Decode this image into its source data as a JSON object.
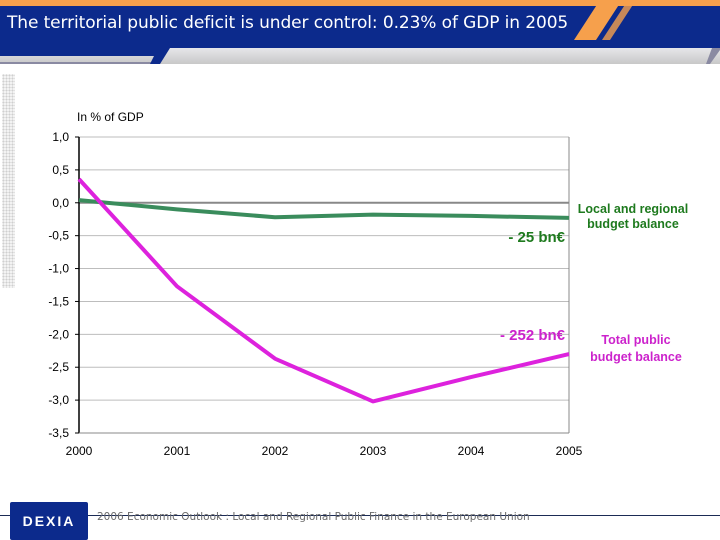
{
  "header": {
    "title": "The territorial public deficit is under control: 0.23% of GDP in 2005"
  },
  "footer": {
    "logo_text": "DEXIA",
    "caption": "2006 Economic Outlook : Local and Regional Public Finance in the European Union"
  },
  "colors": {
    "header_blue": "#0c2a8c",
    "header_orange": "#f6a04c",
    "local_series": "#3a8c5c",
    "total_series": "#dd22dd"
  },
  "chart_data": {
    "type": "line",
    "title": "",
    "ylabel": "In % of GDP",
    "xlabel": "",
    "x": [
      2000,
      2001,
      2002,
      2003,
      2004,
      2005
    ],
    "x_tick_labels": [
      "2000",
      "2001",
      "2002",
      "2003",
      "2004",
      "2005"
    ],
    "ylim": [
      -3.5,
      1.0
    ],
    "y_ticks": [
      1.0,
      0.5,
      0.0,
      -0.5,
      -1.0,
      -1.5,
      -2.0,
      -2.5,
      -3.0,
      -3.5
    ],
    "y_tick_labels": [
      "1,0",
      "0,5",
      "0,0",
      "-0,5",
      "-1,0",
      "-1,5",
      "-2,0",
      "-2,5",
      "-3,0",
      "-3,5"
    ],
    "grid": true,
    "series": [
      {
        "name": "Local and regional budget balance",
        "values": [
          0.04,
          -0.1,
          -0.22,
          -0.18,
          -0.2,
          -0.23
        ],
        "annotation": "- 25 bn€",
        "legend_label": "Local and regional budget balance"
      },
      {
        "name": "Total public budget balance",
        "values": [
          0.36,
          -1.27,
          -2.37,
          -3.02,
          -2.65,
          -2.3
        ],
        "annotation": "- 252 bn€",
        "legend_label": "Total public budget balance"
      }
    ],
    "legend": "right"
  }
}
